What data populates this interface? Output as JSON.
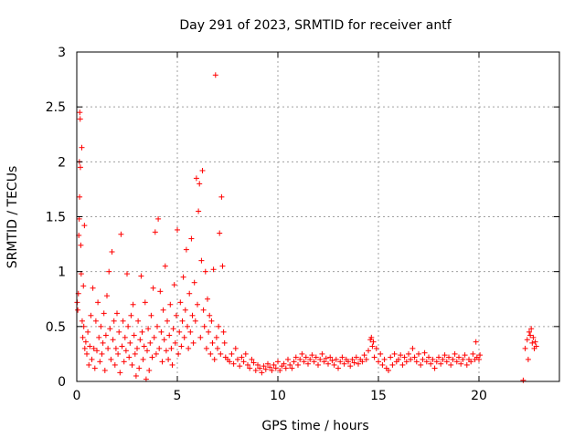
{
  "chart_data": {
    "type": "scatter",
    "title": "Day 291 of 2023, SRMTID for receiver antf",
    "xlabel": "GPS time / hours",
    "ylabel": "SRMTID / TECUs",
    "xlim": [
      0,
      24
    ],
    "ylim": [
      0,
      3
    ],
    "xticks": [
      0,
      5,
      10,
      15,
      20
    ],
    "yticks": [
      0,
      0.5,
      1,
      1.5,
      2,
      2.5,
      3
    ],
    "xtick_labels": [
      "0",
      "5",
      "10",
      "15",
      "20"
    ],
    "ytick_labels": [
      "0",
      "0.5",
      "1",
      "1.5",
      "2",
      "2.5",
      "3"
    ],
    "grid": true,
    "marker": "+",
    "series": [
      {
        "name": "SRMTID",
        "color": "#ff0000",
        "points": [
          [
            0.02,
            0.72
          ],
          [
            0.05,
            0.65
          ],
          [
            0.08,
            0.8
          ],
          [
            0.1,
            1.33
          ],
          [
            0.12,
            1.48
          ],
          [
            0.13,
            2.0
          ],
          [
            0.14,
            1.68
          ],
          [
            0.15,
            2.45
          ],
          [
            0.17,
            2.39
          ],
          [
            0.18,
            1.95
          ],
          [
            0.2,
            1.24
          ],
          [
            0.22,
            0.98
          ],
          [
            0.25,
            2.13
          ],
          [
            0.27,
            0.55
          ],
          [
            0.3,
            0.4
          ],
          [
            0.33,
            0.87
          ],
          [
            0.35,
            0.5
          ],
          [
            0.38,
            1.42
          ],
          [
            0.4,
            0.3
          ],
          [
            0.45,
            0.36
          ],
          [
            0.5,
            0.25
          ],
          [
            0.55,
            0.45
          ],
          [
            0.6,
            0.15
          ],
          [
            0.65,
            0.32
          ],
          [
            0.7,
            0.6
          ],
          [
            0.75,
            0.2
          ],
          [
            0.8,
            0.85
          ],
          [
            0.85,
            0.3
          ],
          [
            0.9,
            0.12
          ],
          [
            0.95,
            0.55
          ],
          [
            1.0,
            0.28
          ],
          [
            1.05,
            0.72
          ],
          [
            1.1,
            0.4
          ],
          [
            1.15,
            0.18
          ],
          [
            1.2,
            0.5
          ],
          [
            1.25,
            0.25
          ],
          [
            1.3,
            0.35
          ],
          [
            1.35,
            0.62
          ],
          [
            1.4,
            0.1
          ],
          [
            1.45,
            0.42
          ],
          [
            1.5,
            0.78
          ],
          [
            1.55,
            0.3
          ],
          [
            1.6,
            1.0
          ],
          [
            1.65,
            0.48
          ],
          [
            1.7,
            0.2
          ],
          [
            1.75,
            1.18
          ],
          [
            1.8,
            0.38
          ],
          [
            1.85,
            0.55
          ],
          [
            1.9,
            0.15
          ],
          [
            1.95,
            0.3
          ],
          [
            2.0,
            0.62
          ],
          [
            2.05,
            0.25
          ],
          [
            2.1,
            0.45
          ],
          [
            2.15,
            0.08
          ],
          [
            2.2,
            1.34
          ],
          [
            2.25,
            0.32
          ],
          [
            2.3,
            0.55
          ],
          [
            2.35,
            0.18
          ],
          [
            2.4,
            0.4
          ],
          [
            2.45,
            0.28
          ],
          [
            2.5,
            0.98
          ],
          [
            2.55,
            0.5
          ],
          [
            2.6,
            0.22
          ],
          [
            2.65,
            0.35
          ],
          [
            2.7,
            0.6
          ],
          [
            2.75,
            0.15
          ],
          [
            2.8,
            0.7
          ],
          [
            2.85,
            0.42
          ],
          [
            2.9,
            0.25
          ],
          [
            2.95,
            0.05
          ],
          [
            3.0,
            0.3
          ],
          [
            3.05,
            0.55
          ],
          [
            3.1,
            0.12
          ],
          [
            3.15,
            0.38
          ],
          [
            3.2,
            0.96
          ],
          [
            3.25,
            0.45
          ],
          [
            3.3,
            0.2
          ],
          [
            3.35,
            0.32
          ],
          [
            3.4,
            0.72
          ],
          [
            3.45,
            0.02
          ],
          [
            3.5,
            0.28
          ],
          [
            3.55,
            0.48
          ],
          [
            3.6,
            0.1
          ],
          [
            3.65,
            0.35
          ],
          [
            3.7,
            0.6
          ],
          [
            3.75,
            0.22
          ],
          [
            3.8,
            0.85
          ],
          [
            3.85,
            0.4
          ],
          [
            3.9,
            1.36
          ],
          [
            3.95,
            0.25
          ],
          [
            4.0,
            0.5
          ],
          [
            4.05,
            1.48
          ],
          [
            4.1,
            0.3
          ],
          [
            4.15,
            0.82
          ],
          [
            4.2,
            0.45
          ],
          [
            4.25,
            0.18
          ],
          [
            4.3,
            0.65
          ],
          [
            4.35,
            0.38
          ],
          [
            4.4,
            1.05
          ],
          [
            4.45,
            0.28
          ],
          [
            4.5,
            0.55
          ],
          [
            4.55,
            0.2
          ],
          [
            4.6,
            0.42
          ],
          [
            4.65,
            0.7
          ],
          [
            4.7,
            0.3
          ],
          [
            4.75,
            0.15
          ],
          [
            4.8,
            0.48
          ],
          [
            4.85,
            0.88
          ],
          [
            4.9,
            0.35
          ],
          [
            4.95,
            0.6
          ],
          [
            5.0,
            1.38
          ],
          [
            5.05,
            0.25
          ],
          [
            5.1,
            0.45
          ],
          [
            5.15,
            0.72
          ],
          [
            5.2,
            0.32
          ],
          [
            5.25,
            0.55
          ],
          [
            5.3,
            0.95
          ],
          [
            5.35,
            0.4
          ],
          [
            5.4,
            0.65
          ],
          [
            5.45,
            1.2
          ],
          [
            5.5,
            0.5
          ],
          [
            5.55,
            0.3
          ],
          [
            5.6,
            0.8
          ],
          [
            5.65,
            0.45
          ],
          [
            5.7,
            1.3
          ],
          [
            5.75,
            0.6
          ],
          [
            5.8,
            0.35
          ],
          [
            5.85,
            0.9
          ],
          [
            5.9,
            0.55
          ],
          [
            5.95,
            1.85
          ],
          [
            6.0,
            0.7
          ],
          [
            6.05,
            1.55
          ],
          [
            6.1,
            1.8
          ],
          [
            6.15,
            0.4
          ],
          [
            6.2,
            1.1
          ],
          [
            6.25,
            1.92
          ],
          [
            6.3,
            0.65
          ],
          [
            6.35,
            0.5
          ],
          [
            6.4,
            1.0
          ],
          [
            6.45,
            0.3
          ],
          [
            6.5,
            0.75
          ],
          [
            6.55,
            0.45
          ],
          [
            6.6,
            0.6
          ],
          [
            6.65,
            0.25
          ],
          [
            6.7,
            0.55
          ],
          [
            6.75,
            0.35
          ],
          [
            6.8,
            1.02
          ],
          [
            6.85,
            0.2
          ],
          [
            6.9,
            2.79
          ],
          [
            6.95,
            0.4
          ],
          [
            7.0,
            0.3
          ],
          [
            7.05,
            0.5
          ],
          [
            7.1,
            1.35
          ],
          [
            7.15,
            0.25
          ],
          [
            7.2,
            1.68
          ],
          [
            7.25,
            1.05
          ],
          [
            7.3,
            0.45
          ],
          [
            7.35,
            0.35
          ],
          [
            7.4,
            0.22
          ],
          [
            7.5,
            0.2
          ],
          [
            7.6,
            0.18
          ],
          [
            7.7,
            0.25
          ],
          [
            7.8,
            0.16
          ],
          [
            7.9,
            0.3
          ],
          [
            8.0,
            0.2
          ],
          [
            8.1,
            0.14
          ],
          [
            8.2,
            0.22
          ],
          [
            8.3,
            0.18
          ],
          [
            8.4,
            0.25
          ],
          [
            8.5,
            0.15
          ],
          [
            8.6,
            0.12
          ],
          [
            8.7,
            0.2
          ],
          [
            8.8,
            0.17
          ],
          [
            8.9,
            0.1
          ],
          [
            9.0,
            0.15
          ],
          [
            9.1,
            0.12
          ],
          [
            9.2,
            0.08
          ],
          [
            9.3,
            0.14
          ],
          [
            9.4,
            0.11
          ],
          [
            9.5,
            0.16
          ],
          [
            9.6,
            0.13
          ],
          [
            9.7,
            0.1
          ],
          [
            9.8,
            0.15
          ],
          [
            9.9,
            0.12
          ],
          [
            10.0,
            0.18
          ],
          [
            10.1,
            0.1
          ],
          [
            10.2,
            0.14
          ],
          [
            10.3,
            0.16
          ],
          [
            10.4,
            0.12
          ],
          [
            10.5,
            0.2
          ],
          [
            10.6,
            0.15
          ],
          [
            10.7,
            0.12
          ],
          [
            10.8,
            0.18
          ],
          [
            10.9,
            0.22
          ],
          [
            11.0,
            0.15
          ],
          [
            11.1,
            0.2
          ],
          [
            11.2,
            0.25
          ],
          [
            11.3,
            0.18
          ],
          [
            11.4,
            0.22
          ],
          [
            11.5,
            0.16
          ],
          [
            11.6,
            0.2
          ],
          [
            11.7,
            0.24
          ],
          [
            11.8,
            0.18
          ],
          [
            11.9,
            0.22
          ],
          [
            12.0,
            0.15
          ],
          [
            12.1,
            0.2
          ],
          [
            12.2,
            0.25
          ],
          [
            12.3,
            0.18
          ],
          [
            12.4,
            0.21
          ],
          [
            12.5,
            0.16
          ],
          [
            12.6,
            0.22
          ],
          [
            12.7,
            0.19
          ],
          [
            12.8,
            0.15
          ],
          [
            12.9,
            0.2
          ],
          [
            13.0,
            0.12
          ],
          [
            13.1,
            0.18
          ],
          [
            13.2,
            0.22
          ],
          [
            13.3,
            0.16
          ],
          [
            13.4,
            0.2
          ],
          [
            13.5,
            0.18
          ],
          [
            13.6,
            0.14
          ],
          [
            13.7,
            0.2
          ],
          [
            13.8,
            0.17
          ],
          [
            13.9,
            0.22
          ],
          [
            14.0,
            0.16
          ],
          [
            14.1,
            0.2
          ],
          [
            14.2,
            0.18
          ],
          [
            14.3,
            0.24
          ],
          [
            14.4,
            0.2
          ],
          [
            14.5,
            0.28
          ],
          [
            14.6,
            0.38
          ],
          [
            14.65,
            0.4
          ],
          [
            14.7,
            0.32
          ],
          [
            14.75,
            0.36
          ],
          [
            14.8,
            0.22
          ],
          [
            14.9,
            0.3
          ],
          [
            15.0,
            0.18
          ],
          [
            15.1,
            0.25
          ],
          [
            15.2,
            0.15
          ],
          [
            15.3,
            0.2
          ],
          [
            15.4,
            0.12
          ],
          [
            15.5,
            0.1
          ],
          [
            15.6,
            0.22
          ],
          [
            15.7,
            0.15
          ],
          [
            15.8,
            0.25
          ],
          [
            15.9,
            0.18
          ],
          [
            16.0,
            0.2
          ],
          [
            16.1,
            0.24
          ],
          [
            16.2,
            0.15
          ],
          [
            16.3,
            0.22
          ],
          [
            16.4,
            0.18
          ],
          [
            16.5,
            0.25
          ],
          [
            16.6,
            0.2
          ],
          [
            16.7,
            0.3
          ],
          [
            16.8,
            0.22
          ],
          [
            16.9,
            0.18
          ],
          [
            17.0,
            0.25
          ],
          [
            17.1,
            0.15
          ],
          [
            17.2,
            0.2
          ],
          [
            17.3,
            0.26
          ],
          [
            17.4,
            0.18
          ],
          [
            17.5,
            0.22
          ],
          [
            17.6,
            0.16
          ],
          [
            17.7,
            0.2
          ],
          [
            17.8,
            0.12
          ],
          [
            17.9,
            0.18
          ],
          [
            18.0,
            0.22
          ],
          [
            18.1,
            0.16
          ],
          [
            18.2,
            0.2
          ],
          [
            18.3,
            0.24
          ],
          [
            18.4,
            0.18
          ],
          [
            18.5,
            0.22
          ],
          [
            18.6,
            0.15
          ],
          [
            18.7,
            0.2
          ],
          [
            18.8,
            0.25
          ],
          [
            18.9,
            0.18
          ],
          [
            19.0,
            0.22
          ],
          [
            19.1,
            0.16
          ],
          [
            19.2,
            0.2
          ],
          [
            19.3,
            0.24
          ],
          [
            19.4,
            0.15
          ],
          [
            19.5,
            0.2
          ],
          [
            19.6,
            0.18
          ],
          [
            19.7,
            0.25
          ],
          [
            19.8,
            0.2
          ],
          [
            19.85,
            0.36
          ],
          [
            19.9,
            0.22
          ],
          [
            20.0,
            0.2
          ],
          [
            20.05,
            0.24
          ],
          [
            22.2,
            0.01
          ],
          [
            22.3,
            0.3
          ],
          [
            22.4,
            0.38
          ],
          [
            22.45,
            0.2
          ],
          [
            22.5,
            0.45
          ],
          [
            22.55,
            0.42
          ],
          [
            22.6,
            0.48
          ],
          [
            22.65,
            0.35
          ],
          [
            22.7,
            0.4
          ],
          [
            22.75,
            0.3
          ],
          [
            22.8,
            0.36
          ],
          [
            22.85,
            0.32
          ]
        ]
      }
    ]
  }
}
